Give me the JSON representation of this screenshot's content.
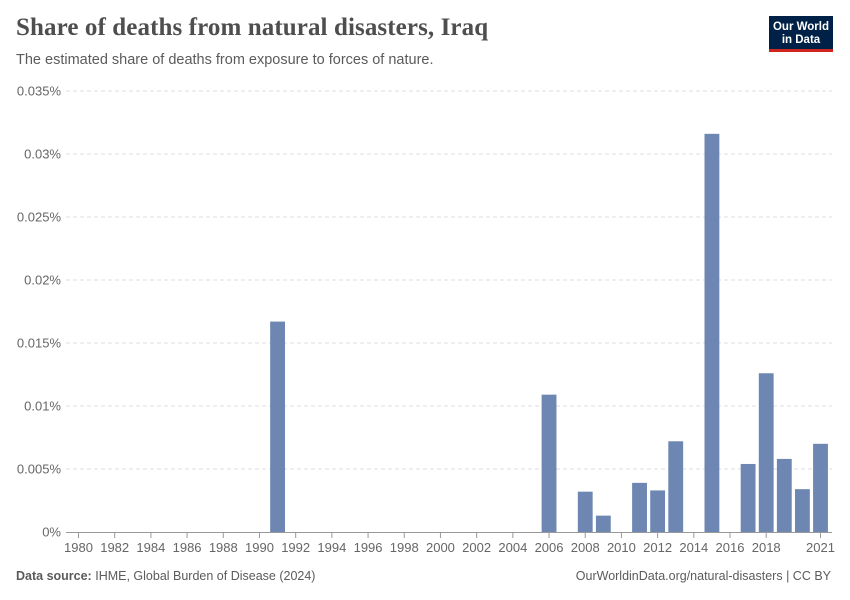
{
  "header": {
    "title": "Share of deaths from natural disasters, Iraq",
    "subtitle": "The estimated share of deaths from exposure to forces of nature."
  },
  "logo": {
    "line1": "Our World",
    "line2": "in Data"
  },
  "footer": {
    "source_label": "Data source:",
    "source_text": "IHME, Global Burden of Disease (2024)",
    "link": "OurWorldinData.org/natural-disasters",
    "separator": " | ",
    "license": "CC BY"
  },
  "colors": {
    "bar": "#6d87b2",
    "grid": "#dddddd",
    "axis": "#999999"
  },
  "chart_data": {
    "type": "bar",
    "title": "Share of deaths from natural disasters, Iraq",
    "xlabel": "",
    "ylabel": "",
    "ylim": [
      0,
      0.035
    ],
    "xlim": [
      1980,
      2021
    ],
    "y_ticks": [
      0,
      0.005,
      0.01,
      0.015,
      0.02,
      0.025,
      0.03,
      0.035
    ],
    "y_tick_labels": [
      "0%",
      "0.005%",
      "0.01%",
      "0.015%",
      "0.02%",
      "0.025%",
      "0.03%",
      "0.035%"
    ],
    "x_tick_labels": [
      "1980",
      "1982",
      "1984",
      "1986",
      "1988",
      "1990",
      "1992",
      "1994",
      "1996",
      "1998",
      "2000",
      "2002",
      "2004",
      "2006",
      "2008",
      "2010",
      "2012",
      "2014",
      "2016",
      "2018",
      "2021"
    ],
    "series": [
      {
        "name": "Iraq",
        "x": [
          1991,
          2006,
          2008,
          2009,
          2011,
          2012,
          2013,
          2015,
          2017,
          2018,
          2019,
          2020,
          2021
        ],
        "values": [
          0.0167,
          0.0109,
          0.0032,
          0.0013,
          0.0039,
          0.0033,
          0.0072,
          0.0316,
          0.0054,
          0.0126,
          0.0058,
          0.0034,
          0.007
        ]
      }
    ]
  }
}
